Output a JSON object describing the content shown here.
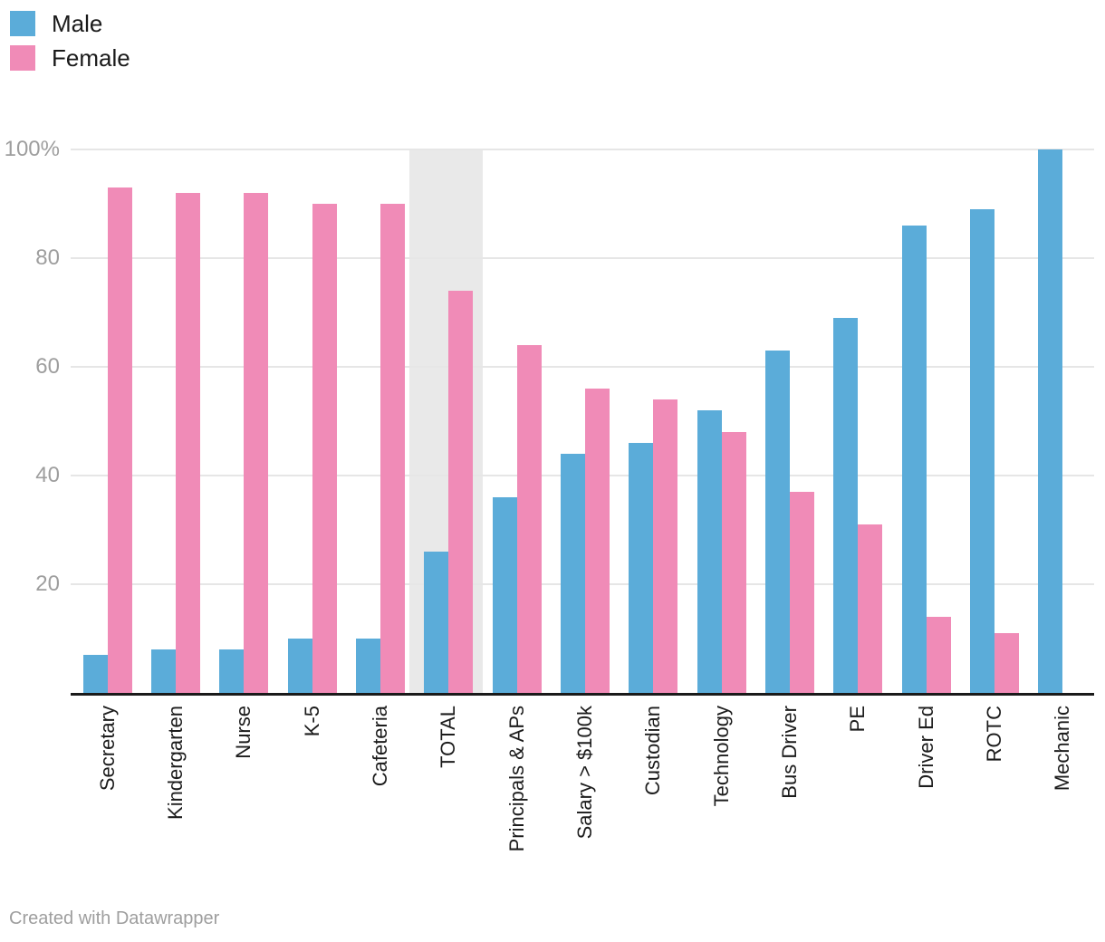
{
  "legend": {
    "items": [
      {
        "label": "Male",
        "color": "#5bacd9"
      },
      {
        "label": "Female",
        "color": "#f08bb7"
      }
    ]
  },
  "footer": {
    "attribution": "Created with Datawrapper"
  },
  "colors": {
    "male": "#5bacd9",
    "female": "#f08bb7",
    "highlight_band": "#e9e9e9",
    "gridline": "#e6e6e6",
    "baseline": "#1a1a1a",
    "ytick_text": "#9e9e9e",
    "xlabel_text": "#1c1c1c"
  },
  "chart_data": {
    "type": "bar",
    "title": "",
    "xlabel": "",
    "ylabel": "",
    "ylim": [
      0,
      100
    ],
    "grid": true,
    "legend_position": "top-left",
    "categories": [
      "Secretary",
      "Kindergarten",
      "Nurse",
      "K-5",
      "Cafeteria",
      "TOTAL",
      "Principals & APs",
      "Salary > $100k",
      "Custodian",
      "Technology",
      "Bus Driver",
      "PE",
      "Driver Ed",
      "ROTC",
      "Mechanic"
    ],
    "series": [
      {
        "name": "Male",
        "color": "#5bacd9",
        "values": [
          7,
          8,
          8,
          10,
          10,
          26,
          36,
          44,
          46,
          52,
          63,
          69,
          86,
          89,
          100
        ]
      },
      {
        "name": "Female",
        "color": "#f08bb7",
        "values": [
          93,
          92,
          92,
          90,
          90,
          74,
          64,
          56,
          54,
          48,
          37,
          31,
          14,
          11,
          0
        ]
      }
    ],
    "yticks": [
      {
        "value": 20,
        "label": "20"
      },
      {
        "value": 40,
        "label": "40"
      },
      {
        "value": 60,
        "label": "60"
      },
      {
        "value": 80,
        "label": "80"
      },
      {
        "value": 100,
        "label": "100%"
      }
    ],
    "highlighted_category": "TOTAL"
  }
}
